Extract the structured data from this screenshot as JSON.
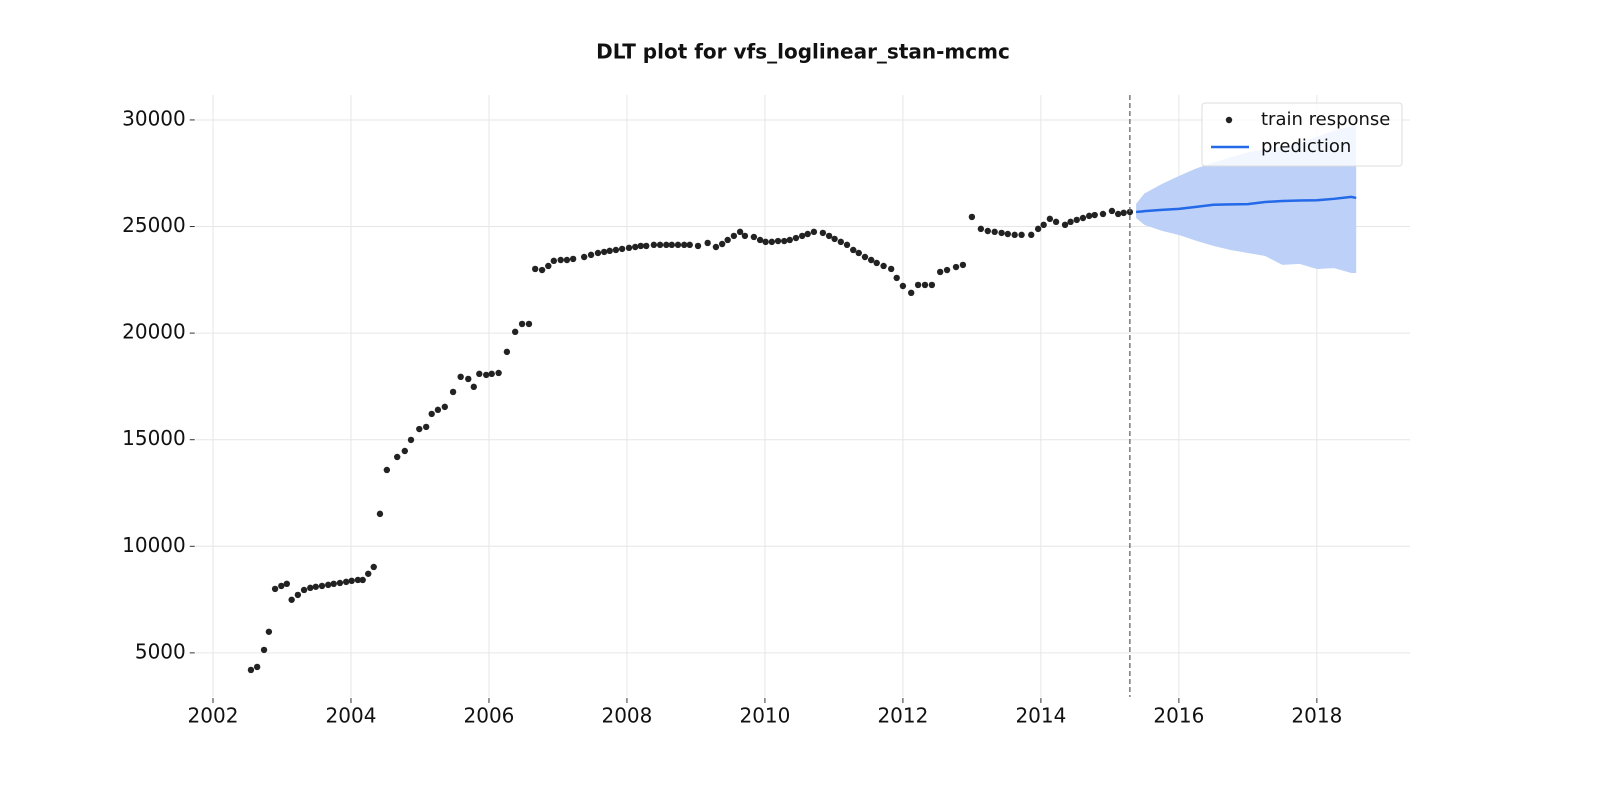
{
  "chart_data": {
    "type": "line",
    "title": "DLT plot for vfs_loglinear_stan-mcmc",
    "xlim": [
      2001.75,
      2019.35
    ],
    "ylim": [
      2930,
      31170
    ],
    "xticks": [
      2002,
      2004,
      2006,
      2008,
      2010,
      2012,
      2014,
      2016,
      2018
    ],
    "yticks": [
      5000,
      10000,
      15000,
      20000,
      25000,
      30000
    ],
    "grid": true,
    "legend": "upper right",
    "train_end": 2015.29,
    "series": [
      {
        "name": "train response",
        "type": "scatter",
        "color": "#222222",
        "x": [
          2002.55,
          2002.64,
          2002.74,
          2002.81,
          2002.9,
          2002.99,
          2003.07,
          2003.14,
          2003.23,
          2003.32,
          2003.41,
          2003.49,
          2003.58,
          2003.67,
          2003.75,
          2003.84,
          2003.93,
          2004.01,
          2004.1,
          2004.17,
          2004.25,
          2004.33,
          2004.42,
          2004.52,
          2004.67,
          2004.78,
          2004.87,
          2004.99,
          2005.09,
          2005.17,
          2005.26,
          2005.36,
          2005.48,
          2005.59,
          2005.7,
          2005.78,
          2005.86,
          2005.96,
          2006.04,
          2006.14,
          2006.26,
          2006.38,
          2006.48,
          2006.58,
          2006.67,
          2006.77,
          2006.86,
          2006.94,
          2007.04,
          2007.13,
          2007.22,
          2007.38,
          2007.48,
          2007.58,
          2007.67,
          2007.75,
          2007.84,
          2007.93,
          2008.03,
          2008.12,
          2008.2,
          2008.28,
          2008.39,
          2008.48,
          2008.57,
          2008.65,
          2008.74,
          2008.83,
          2008.91,
          2009.03,
          2009.17,
          2009.29,
          2009.38,
          2009.46,
          2009.55,
          2009.64,
          2009.71,
          2009.84,
          2009.93,
          2010.01,
          2010.1,
          2010.19,
          2010.28,
          2010.36,
          2010.45,
          2010.54,
          2010.62,
          2010.71,
          2010.84,
          2010.93,
          2011.01,
          2011.1,
          2011.19,
          2011.28,
          2011.36,
          2011.45,
          2011.54,
          2011.62,
          2011.72,
          2011.83,
          2011.91,
          2012.0,
          2012.12,
          2012.22,
          2012.32,
          2012.42,
          2012.54,
          2012.64,
          2012.77,
          2012.87,
          2013.0,
          2013.13,
          2013.23,
          2013.33,
          2013.43,
          2013.52,
          2013.62,
          2013.72,
          2013.86,
          2013.96,
          2014.04,
          2014.13,
          2014.22,
          2014.35,
          2014.43,
          2014.52,
          2014.61,
          2014.7,
          2014.78,
          2014.9,
          2015.03,
          2015.12,
          2015.2,
          2015.29
        ],
        "values": [
          4200,
          4340,
          5140,
          5990,
          8000,
          8140,
          8240,
          7490,
          7720,
          7950,
          8050,
          8100,
          8140,
          8190,
          8240,
          8280,
          8330,
          8380,
          8420,
          8420,
          8710,
          9030,
          11520,
          13580,
          14190,
          14470,
          14990,
          15500,
          15600,
          16210,
          16400,
          16540,
          17240,
          17950,
          17850,
          17480,
          18090,
          18040,
          18090,
          18130,
          19120,
          20060,
          20430,
          20430,
          23010,
          22960,
          23150,
          23390,
          23430,
          23430,
          23480,
          23570,
          23670,
          23760,
          23810,
          23860,
          23900,
          23950,
          24000,
          24040,
          24090,
          24090,
          24140,
          24140,
          24140,
          24140,
          24140,
          24140,
          24140,
          24090,
          24230,
          24040,
          24180,
          24370,
          24560,
          24750,
          24560,
          24510,
          24370,
          24280,
          24280,
          24320,
          24320,
          24370,
          24460,
          24560,
          24650,
          24750,
          24700,
          24560,
          24420,
          24280,
          24140,
          23900,
          23760,
          23570,
          23430,
          23290,
          23150,
          23010,
          22590,
          22210,
          21890,
          22260,
          22260,
          22260,
          22870,
          22960,
          23100,
          23200,
          25450,
          24890,
          24790,
          24750,
          24700,
          24650,
          24610,
          24610,
          24610,
          24890,
          25080,
          25360,
          25220,
          25080,
          25220,
          25310,
          25400,
          25500,
          25540,
          25590,
          25730,
          25590,
          25640,
          25680
        ]
      },
      {
        "name": "prediction",
        "type": "line",
        "color": "#2369e8",
        "band_color": "#bcd0f8",
        "x": [
          2015.38,
          2015.5,
          2015.75,
          2016.0,
          2016.25,
          2016.5,
          2016.75,
          2017.0,
          2017.25,
          2017.5,
          2017.75,
          2018.0,
          2018.25,
          2018.5,
          2018.57
        ],
        "values": [
          25680,
          25720,
          25780,
          25830,
          25920,
          26020,
          26040,
          26050,
          26150,
          26200,
          26220,
          26230,
          26300,
          26390,
          26340
        ],
        "lower": [
          25400,
          25080,
          24800,
          24600,
          24330,
          24090,
          23900,
          23760,
          23620,
          23200,
          23250,
          23010,
          23050,
          22820,
          22820
        ],
        "upper": [
          26060,
          26550,
          26990,
          27370,
          27720,
          28000,
          28250,
          28470,
          28630,
          28750,
          28960,
          29200,
          29500,
          29700,
          29750
        ]
      }
    ]
  }
}
